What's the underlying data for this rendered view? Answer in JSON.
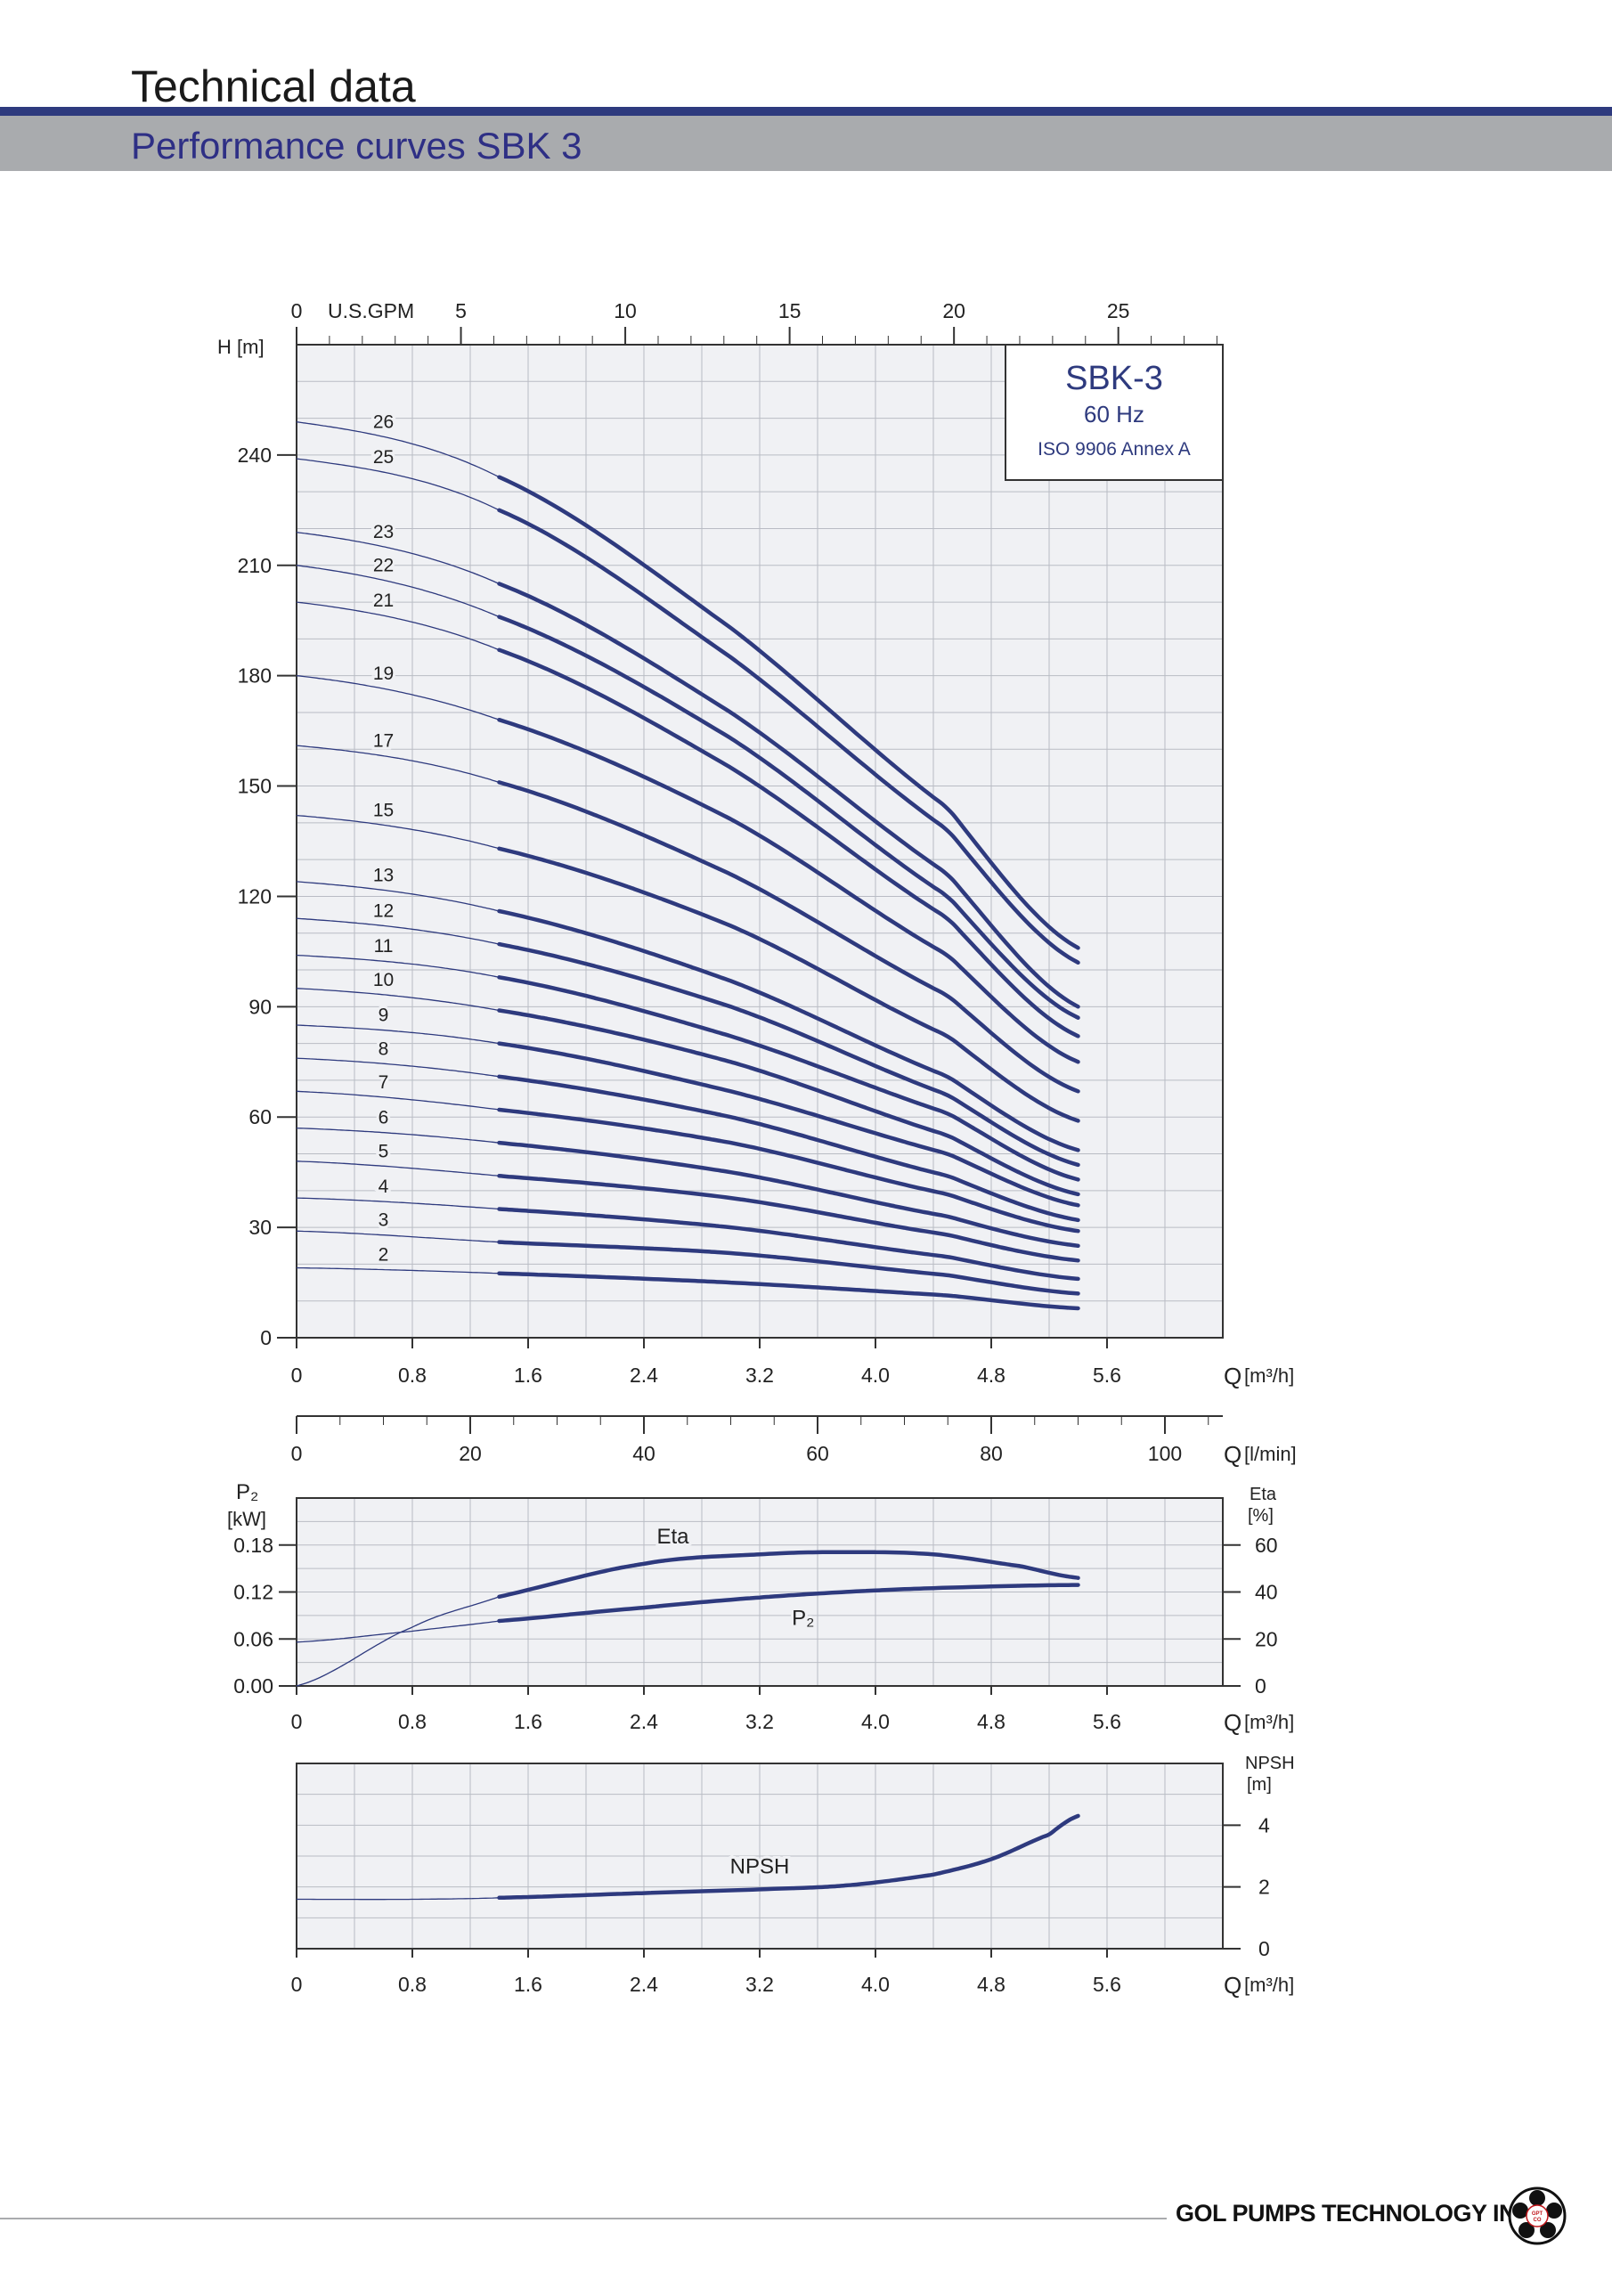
{
  "header": {
    "title": "Technical data",
    "subtitle": "Performance curves SBK 3"
  },
  "footer": {
    "company": "GOL PUMPS TECHNOLOGY INC",
    "logo_text": "GPT CO"
  },
  "colors": {
    "curve": "#2e3a7e",
    "grid": "#b9bcc4",
    "plot_bg": "#f0f1f4",
    "header_bar": "#2e3a7e",
    "header_band": "#a9abae"
  },
  "chart_data": [
    {
      "type": "line",
      "id": "head",
      "title": "SBK-3",
      "legend_box": [
        "SBK-3",
        "60 Hz",
        "ISO 9906 Annex A"
      ],
      "ylabel": "H [m]",
      "xlabel": "Q",
      "xunit": "[m³/h]",
      "xlim": [
        0,
        6.4
      ],
      "ylim": [
        0,
        270
      ],
      "xticks": [
        "0",
        "0.8",
        "1.6",
        "2.4",
        "3.2",
        "4.0",
        "4.8",
        "5.6"
      ],
      "yticks": [
        "0",
        "30",
        "60",
        "90",
        "120",
        "150",
        "180",
        "210",
        "240"
      ],
      "top_axis": {
        "label": "U.S.GPM",
        "ticks": [
          "0",
          "5",
          "10",
          "15",
          "20",
          "25"
        ],
        "values": [
          0,
          5,
          10,
          15,
          20,
          25
        ]
      },
      "second_axis": {
        "label": "Q",
        "unit": "[l/min]",
        "ticks": [
          "0",
          "20",
          "40",
          "60",
          "80",
          "100"
        ],
        "values": [
          0,
          20,
          40,
          60,
          80,
          100
        ]
      },
      "x_thick_from": 1.4,
      "x_end": 5.4,
      "series": [
        {
          "name": "26",
          "values": [
            [
              0,
              249
            ],
            [
              1.4,
              234
            ],
            [
              3.0,
              193
            ],
            [
              4.5,
              144
            ],
            [
              5.4,
              106
            ]
          ]
        },
        {
          "name": "25",
          "values": [
            [
              0,
              239
            ],
            [
              1.4,
              225
            ],
            [
              3.0,
              185
            ],
            [
              4.5,
              138
            ],
            [
              5.4,
              102
            ]
          ]
        },
        {
          "name": "23",
          "values": [
            [
              0,
              219
            ],
            [
              1.4,
              205
            ],
            [
              3.0,
              170
            ],
            [
              4.5,
              126
            ],
            [
              5.4,
              90
            ]
          ]
        },
        {
          "name": "22",
          "values": [
            [
              0,
              210
            ],
            [
              1.4,
              196
            ],
            [
              3.0,
              163
            ],
            [
              4.5,
              120
            ],
            [
              5.4,
              87
            ]
          ]
        },
        {
          "name": "21",
          "values": [
            [
              0,
              200
            ],
            [
              1.4,
              187
            ],
            [
              3.0,
              155
            ],
            [
              4.5,
              114
            ],
            [
              5.4,
              82
            ]
          ]
        },
        {
          "name": "19",
          "values": [
            [
              0,
              180
            ],
            [
              1.4,
              168
            ],
            [
              3.0,
              141
            ],
            [
              4.5,
              104
            ],
            [
              5.4,
              75
            ]
          ]
        },
        {
          "name": "17",
          "values": [
            [
              0,
              161
            ],
            [
              1.4,
              151
            ],
            [
              3.0,
              126
            ],
            [
              4.5,
              93
            ],
            [
              5.4,
              67
            ]
          ]
        },
        {
          "name": "15",
          "values": [
            [
              0,
              142
            ],
            [
              1.4,
              133
            ],
            [
              3.0,
              112
            ],
            [
              4.5,
              82
            ],
            [
              5.4,
              59
            ]
          ]
        },
        {
          "name": "13",
          "values": [
            [
              0,
              124
            ],
            [
              1.4,
              116
            ],
            [
              3.0,
              97
            ],
            [
              4.5,
              71
            ],
            [
              5.4,
              51
            ]
          ]
        },
        {
          "name": "12",
          "values": [
            [
              0,
              114
            ],
            [
              1.4,
              107
            ],
            [
              3.0,
              90
            ],
            [
              4.5,
              66
            ],
            [
              5.4,
              47
            ]
          ]
        },
        {
          "name": "11",
          "values": [
            [
              0,
              104
            ],
            [
              1.4,
              98
            ],
            [
              3.0,
              82
            ],
            [
              4.5,
              61
            ],
            [
              5.4,
              43
            ]
          ]
        },
        {
          "name": "10",
          "values": [
            [
              0,
              95
            ],
            [
              1.4,
              89
            ],
            [
              3.0,
              75
            ],
            [
              4.5,
              55
            ],
            [
              5.4,
              39
            ]
          ]
        },
        {
          "name": "9",
          "values": [
            [
              0,
              85
            ],
            [
              1.4,
              80
            ],
            [
              3.0,
              67
            ],
            [
              4.5,
              50
            ],
            [
              5.4,
              36
            ]
          ]
        },
        {
          "name": "8",
          "values": [
            [
              0,
              76
            ],
            [
              1.4,
              71
            ],
            [
              3.0,
              60
            ],
            [
              4.5,
              44
            ],
            [
              5.4,
              32
            ]
          ]
        },
        {
          "name": "7",
          "values": [
            [
              0,
              67
            ],
            [
              1.4,
              62
            ],
            [
              3.0,
              53
            ],
            [
              4.5,
              39
            ],
            [
              5.4,
              29
            ]
          ]
        },
        {
          "name": "6",
          "values": [
            [
              0,
              57
            ],
            [
              1.4,
              53
            ],
            [
              3.0,
              45
            ],
            [
              4.5,
              33
            ],
            [
              5.4,
              25
            ]
          ]
        },
        {
          "name": "5",
          "values": [
            [
              0,
              48
            ],
            [
              1.4,
              44
            ],
            [
              3.0,
              38
            ],
            [
              4.5,
              28
            ],
            [
              5.4,
              21
            ]
          ]
        },
        {
          "name": "4",
          "values": [
            [
              0,
              38
            ],
            [
              1.4,
              35
            ],
            [
              3.0,
              30
            ],
            [
              4.5,
              22
            ],
            [
              5.4,
              16
            ]
          ]
        },
        {
          "name": "3",
          "values": [
            [
              0,
              29
            ],
            [
              1.4,
              26
            ],
            [
              3.0,
              23
            ],
            [
              4.5,
              17
            ],
            [
              5.4,
              12
            ]
          ]
        },
        {
          "name": "2",
          "values": [
            [
              0,
              19
            ],
            [
              1.4,
              17.5
            ],
            [
              3.0,
              15
            ],
            [
              4.5,
              11.5
            ],
            [
              5.4,
              8
            ]
          ]
        }
      ]
    },
    {
      "type": "line",
      "id": "power-eta",
      "xlabel": "Q",
      "xunit": "[m³/h]",
      "xlim": [
        0,
        6.4
      ],
      "ylabel": "P₂",
      "ylabel_unit": "[kW]",
      "ylim": [
        0,
        0.24
      ],
      "yticks": [
        "0.00",
        "0.06",
        "0.12",
        "0.18"
      ],
      "y2label": "Eta",
      "y2label_unit": "[%]",
      "y2lim": [
        0,
        80
      ],
      "y2ticks": [
        "0",
        "20",
        "40",
        "60"
      ],
      "xticks": [
        "0",
        "0.8",
        "1.6",
        "2.4",
        "3.2",
        "4.0",
        "4.8",
        "5.6"
      ],
      "series": [
        {
          "name": "Eta",
          "axis": "right",
          "values": [
            [
              0,
              0
            ],
            [
              0.8,
              25
            ],
            [
              1.4,
              38
            ],
            [
              2.4,
              52
            ],
            [
              3.2,
              56
            ],
            [
              3.8,
              57
            ],
            [
              4.4,
              56
            ],
            [
              5.0,
              51
            ],
            [
              5.4,
              46
            ]
          ]
        },
        {
          "name": "P₂",
          "axis": "left",
          "values": [
            [
              0,
              0.056
            ],
            [
              0.8,
              0.07
            ],
            [
              1.4,
              0.083
            ],
            [
              2.4,
              0.1
            ],
            [
              3.2,
              0.113
            ],
            [
              4.0,
              0.122
            ],
            [
              4.8,
              0.127
            ],
            [
              5.4,
              0.129
            ]
          ]
        }
      ]
    },
    {
      "type": "line",
      "id": "npsh",
      "xlabel": "Q",
      "xunit": "[m³/h]",
      "xlim": [
        0,
        6.4
      ],
      "y2label": "NPSH",
      "y2label_unit": "[m]",
      "ylim": [
        0,
        6
      ],
      "yticks": [
        "0",
        "2",
        "4"
      ],
      "xticks": [
        "0",
        "0.8",
        "1.6",
        "2.4",
        "3.2",
        "4.0",
        "4.8",
        "5.6"
      ],
      "series": [
        {
          "name": "NPSH",
          "values": [
            [
              0,
              1.6
            ],
            [
              0.8,
              1.6
            ],
            [
              1.4,
              1.65
            ],
            [
              2.4,
              1.8
            ],
            [
              3.2,
              1.92
            ],
            [
              3.8,
              2.05
            ],
            [
              4.4,
              2.4
            ],
            [
              4.8,
              2.9
            ],
            [
              5.2,
              3.7
            ],
            [
              5.4,
              4.3
            ]
          ]
        }
      ]
    }
  ]
}
